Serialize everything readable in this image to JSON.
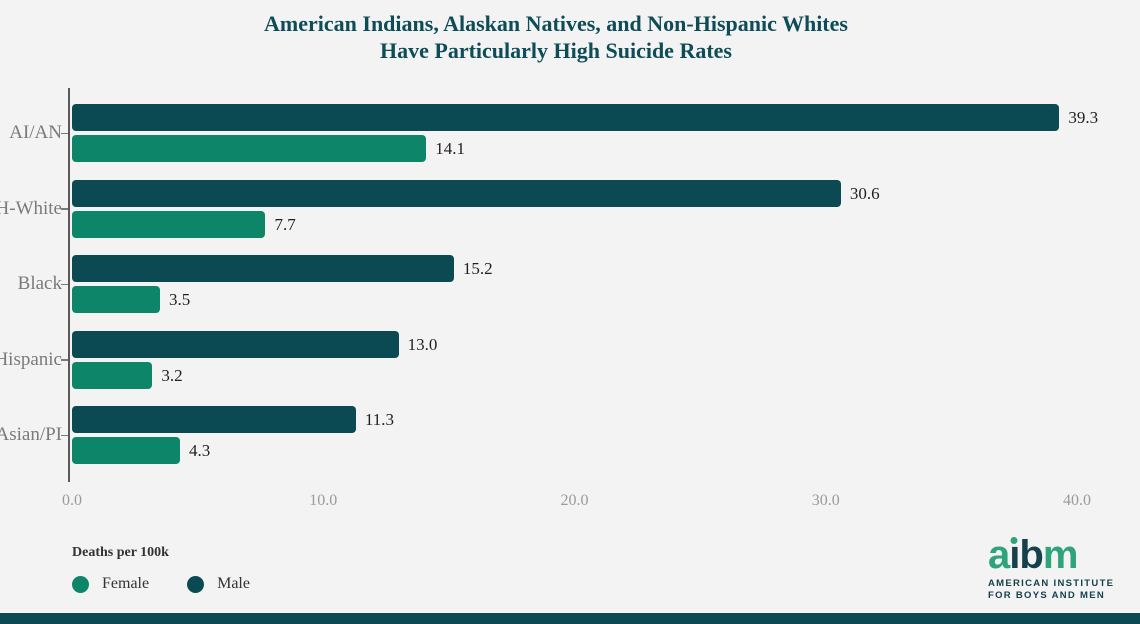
{
  "title": {
    "line1": "American Indians, Alaskan Natives, and Non-Hispanic Whites",
    "line2": "Have Particularly High Suicide Rates"
  },
  "chart_data": {
    "type": "bar",
    "orientation": "horizontal",
    "categories": [
      "AI/AN",
      "NH-White",
      "Black",
      "Hispanic",
      "Asian/PI"
    ],
    "series": [
      {
        "name": "Male",
        "color": "#0c4a53",
        "values": [
          39.3,
          30.6,
          15.2,
          13.0,
          11.3
        ]
      },
      {
        "name": "Female",
        "color": "#0d8569",
        "values": [
          14.1,
          7.7,
          3.5,
          3.2,
          4.3
        ]
      }
    ],
    "value_label_decimals": 1,
    "xlim": [
      0,
      40
    ],
    "x_ticks": [
      "0.0",
      "10.0",
      "20.0",
      "30.0",
      "40.0"
    ],
    "x_tick_values": [
      0,
      10,
      20,
      30,
      40
    ],
    "xlabel": "",
    "ylabel": "",
    "grid": false,
    "legend_position": "bottom-left"
  },
  "legend": {
    "title": "Deaths per 100k",
    "items": [
      {
        "label": "Female",
        "color": "#0d8569"
      },
      {
        "label": "Male",
        "color": "#0c4a53"
      }
    ]
  },
  "logo": {
    "c1": "a",
    "c2": "ı",
    "c3": "b",
    "c4": "m",
    "line1": "AMERICAN INSTITUTE",
    "line2": "FOR BOYS AND MEN"
  },
  "colors": {
    "background": "#f2f3f2",
    "title": "#0e4c58",
    "male_bar": "#0c4a53",
    "female_bar": "#0d8569",
    "axis": "#5a5a5a",
    "category_label": "#7a7a7a",
    "tick_label": "#9a9a9a",
    "value_label": "#1f1f1f",
    "footer_bar": "#0c4a53"
  }
}
